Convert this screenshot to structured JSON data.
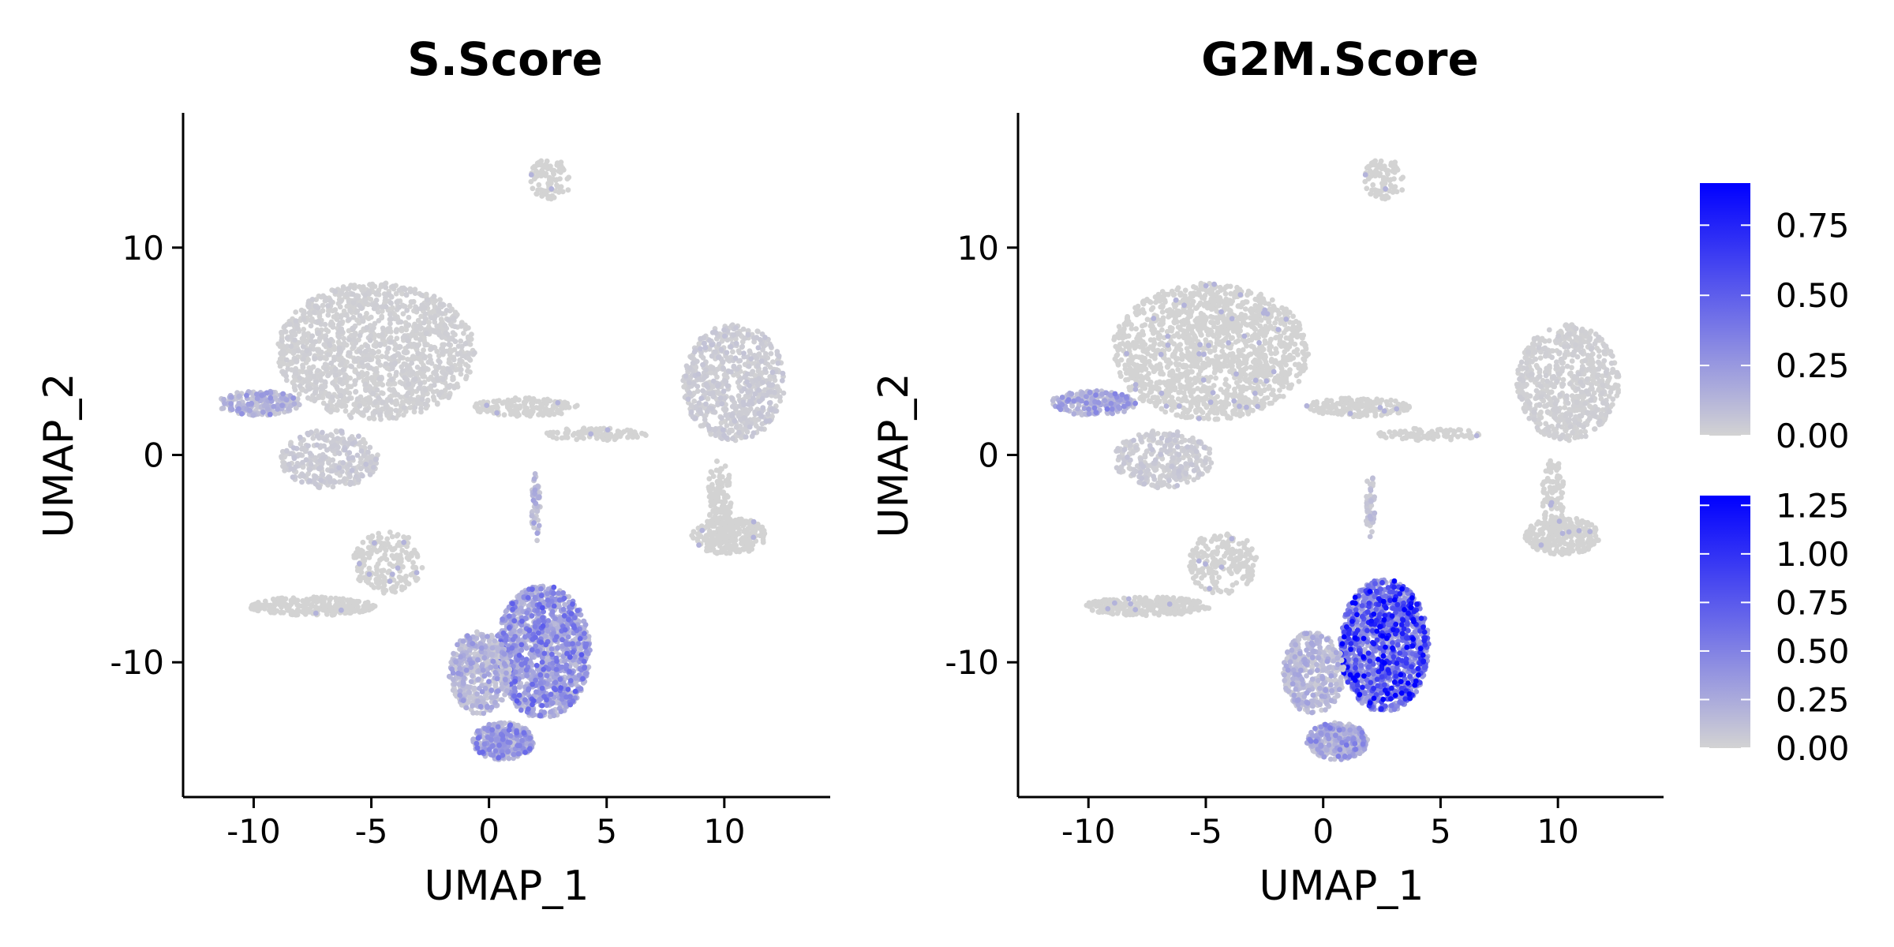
{
  "chart_data": [
    {
      "type": "scatter",
      "title": "S.Score",
      "xlabel": "UMAP_1",
      "ylabel": "UMAP_2",
      "xlim": [
        -13,
        14.5
      ],
      "ylim": [
        -16.5,
        16.5
      ],
      "xticks": [
        -10,
        -5,
        0,
        5,
        10
      ],
      "xtick_labels": [
        "-10",
        "-5",
        "0",
        "5",
        "10"
      ],
      "yticks": [
        10,
        0,
        -10
      ],
      "ytick_labels": [
        "10",
        "0",
        "-10"
      ],
      "low_color": "#d3d3d3",
      "high_color": "#0000ff",
      "max_value": 0.9,
      "clusters": [
        {
          "name": "top-small",
          "cx": 2.6,
          "cy": 13.3,
          "rx": 0.9,
          "ry": 1.0,
          "n": 90,
          "level": 0.0
        },
        {
          "name": "upper-left-large",
          "cx": -4.8,
          "cy": 5.0,
          "rx": 4.2,
          "ry": 3.3,
          "n": 1500,
          "level": 0.02
        },
        {
          "name": "left-arm",
          "cx": -9.8,
          "cy": 2.5,
          "rx": 1.8,
          "ry": 0.6,
          "n": 220,
          "level": 0.2
        },
        {
          "name": "lower-left-lobe",
          "cx": -6.8,
          "cy": -0.2,
          "rx": 2.1,
          "ry": 1.4,
          "n": 320,
          "level": 0.05
        },
        {
          "name": "bridge",
          "cx": 1.5,
          "cy": 2.3,
          "rx": 2.3,
          "ry": 0.45,
          "n": 160,
          "level": 0.0
        },
        {
          "name": "right-arm",
          "cx": 4.5,
          "cy": 1.0,
          "rx": 2.2,
          "ry": 0.3,
          "n": 90,
          "level": 0.0
        },
        {
          "name": "right-cluster",
          "cx": 10.4,
          "cy": 3.5,
          "rx": 2.2,
          "ry": 2.8,
          "n": 700,
          "level": 0.05
        },
        {
          "name": "right-stalk",
          "cx": 9.8,
          "cy": -2.0,
          "rx": 0.5,
          "ry": 1.8,
          "n": 110,
          "level": 0.0
        },
        {
          "name": "right-lower-lobe",
          "cx": 10.2,
          "cy": -3.9,
          "rx": 1.6,
          "ry": 0.9,
          "n": 280,
          "level": 0.0
        },
        {
          "name": "center-stalk",
          "cx": 2.0,
          "cy": -2.5,
          "rx": 0.2,
          "ry": 1.7,
          "n": 50,
          "level": 0.15
        },
        {
          "name": "lower-left-strip",
          "cx": -7.5,
          "cy": -7.3,
          "rx": 2.7,
          "ry": 0.45,
          "n": 260,
          "level": 0.0
        },
        {
          "name": "lower-left-branch",
          "cx": -4.3,
          "cy": -5.2,
          "rx": 1.5,
          "ry": 1.5,
          "n": 200,
          "level": 0.0
        },
        {
          "name": "bottom-main",
          "cx": 2.3,
          "cy": -9.5,
          "rx": 2.0,
          "ry": 3.2,
          "n": 1300,
          "level": 0.35
        },
        {
          "name": "bottom-left-lobe",
          "cx": -0.4,
          "cy": -10.5,
          "rx": 1.3,
          "ry": 2.0,
          "n": 450,
          "level": 0.18
        },
        {
          "name": "bottom-tail",
          "cx": 0.6,
          "cy": -13.8,
          "rx": 1.3,
          "ry": 0.9,
          "n": 360,
          "level": 0.3
        }
      ]
    },
    {
      "type": "scatter",
      "title": "G2M.Score",
      "xlabel": "UMAP_1",
      "ylabel": "UMAP_2",
      "xlim": [
        -13,
        14.5
      ],
      "ylim": [
        -16.5,
        16.5
      ],
      "xticks": [
        -10,
        -5,
        0,
        5,
        10
      ],
      "xtick_labels": [
        "-10",
        "-5",
        "0",
        "5",
        "10"
      ],
      "yticks": [
        10,
        0,
        -10
      ],
      "ytick_labels": [
        "10",
        "0",
        "-10"
      ],
      "low_color": "#d3d3d3",
      "high_color": "#0000ff",
      "max_value": 1.3,
      "clusters": [
        {
          "name": "top-small",
          "cx": 2.6,
          "cy": 13.3,
          "rx": 0.9,
          "ry": 1.0,
          "n": 90,
          "level": 0.0
        },
        {
          "name": "upper-left-large",
          "cx": -4.8,
          "cy": 5.0,
          "rx": 4.2,
          "ry": 3.3,
          "n": 1500,
          "level": 0.0
        },
        {
          "name": "left-arm",
          "cx": -9.8,
          "cy": 2.5,
          "rx": 1.8,
          "ry": 0.6,
          "n": 220,
          "level": 0.25
        },
        {
          "name": "lower-left-lobe",
          "cx": -6.8,
          "cy": -0.2,
          "rx": 2.1,
          "ry": 1.4,
          "n": 320,
          "level": 0.05
        },
        {
          "name": "bridge",
          "cx": 1.5,
          "cy": 2.3,
          "rx": 2.3,
          "ry": 0.45,
          "n": 160,
          "level": 0.0
        },
        {
          "name": "right-arm",
          "cx": 4.5,
          "cy": 1.0,
          "rx": 2.2,
          "ry": 0.3,
          "n": 90,
          "level": 0.0
        },
        {
          "name": "right-cluster",
          "cx": 10.4,
          "cy": 3.5,
          "rx": 2.2,
          "ry": 2.8,
          "n": 700,
          "level": 0.02
        },
        {
          "name": "right-stalk",
          "cx": 9.8,
          "cy": -2.0,
          "rx": 0.5,
          "ry": 1.8,
          "n": 110,
          "level": 0.0
        },
        {
          "name": "right-lower-lobe",
          "cx": 10.2,
          "cy": -3.9,
          "rx": 1.6,
          "ry": 0.9,
          "n": 280,
          "level": 0.0
        },
        {
          "name": "center-stalk",
          "cx": 2.0,
          "cy": -2.5,
          "rx": 0.2,
          "ry": 1.7,
          "n": 50,
          "level": 0.1
        },
        {
          "name": "lower-left-strip",
          "cx": -7.5,
          "cy": -7.3,
          "rx": 2.7,
          "ry": 0.45,
          "n": 260,
          "level": 0.0
        },
        {
          "name": "lower-left-branch",
          "cx": -4.3,
          "cy": -5.2,
          "rx": 1.5,
          "ry": 1.5,
          "n": 200,
          "level": 0.0
        },
        {
          "name": "bottom-main",
          "cx": 2.6,
          "cy": -9.2,
          "rx": 1.9,
          "ry": 3.2,
          "n": 1300,
          "level": 0.7
        },
        {
          "name": "bottom-left-lobe",
          "cx": -0.4,
          "cy": -10.5,
          "rx": 1.3,
          "ry": 2.0,
          "n": 450,
          "level": 0.15
        },
        {
          "name": "bottom-tail",
          "cx": 0.6,
          "cy": -13.8,
          "rx": 1.3,
          "ry": 0.9,
          "n": 360,
          "level": 0.25
        }
      ]
    }
  ],
  "legends": [
    {
      "min": 0.0,
      "max": 0.9,
      "ticks": [
        0.0,
        0.25,
        0.5,
        0.75
      ],
      "tick_labels": [
        "0.00",
        "0.25",
        "0.50",
        "0.75"
      ]
    },
    {
      "min": 0.0,
      "max": 1.3,
      "ticks": [
        0.0,
        0.25,
        0.5,
        0.75,
        1.0,
        1.25
      ],
      "tick_labels": [
        "0.00",
        "0.25",
        "0.50",
        "0.75",
        "1.00",
        "1.25"
      ]
    }
  ]
}
